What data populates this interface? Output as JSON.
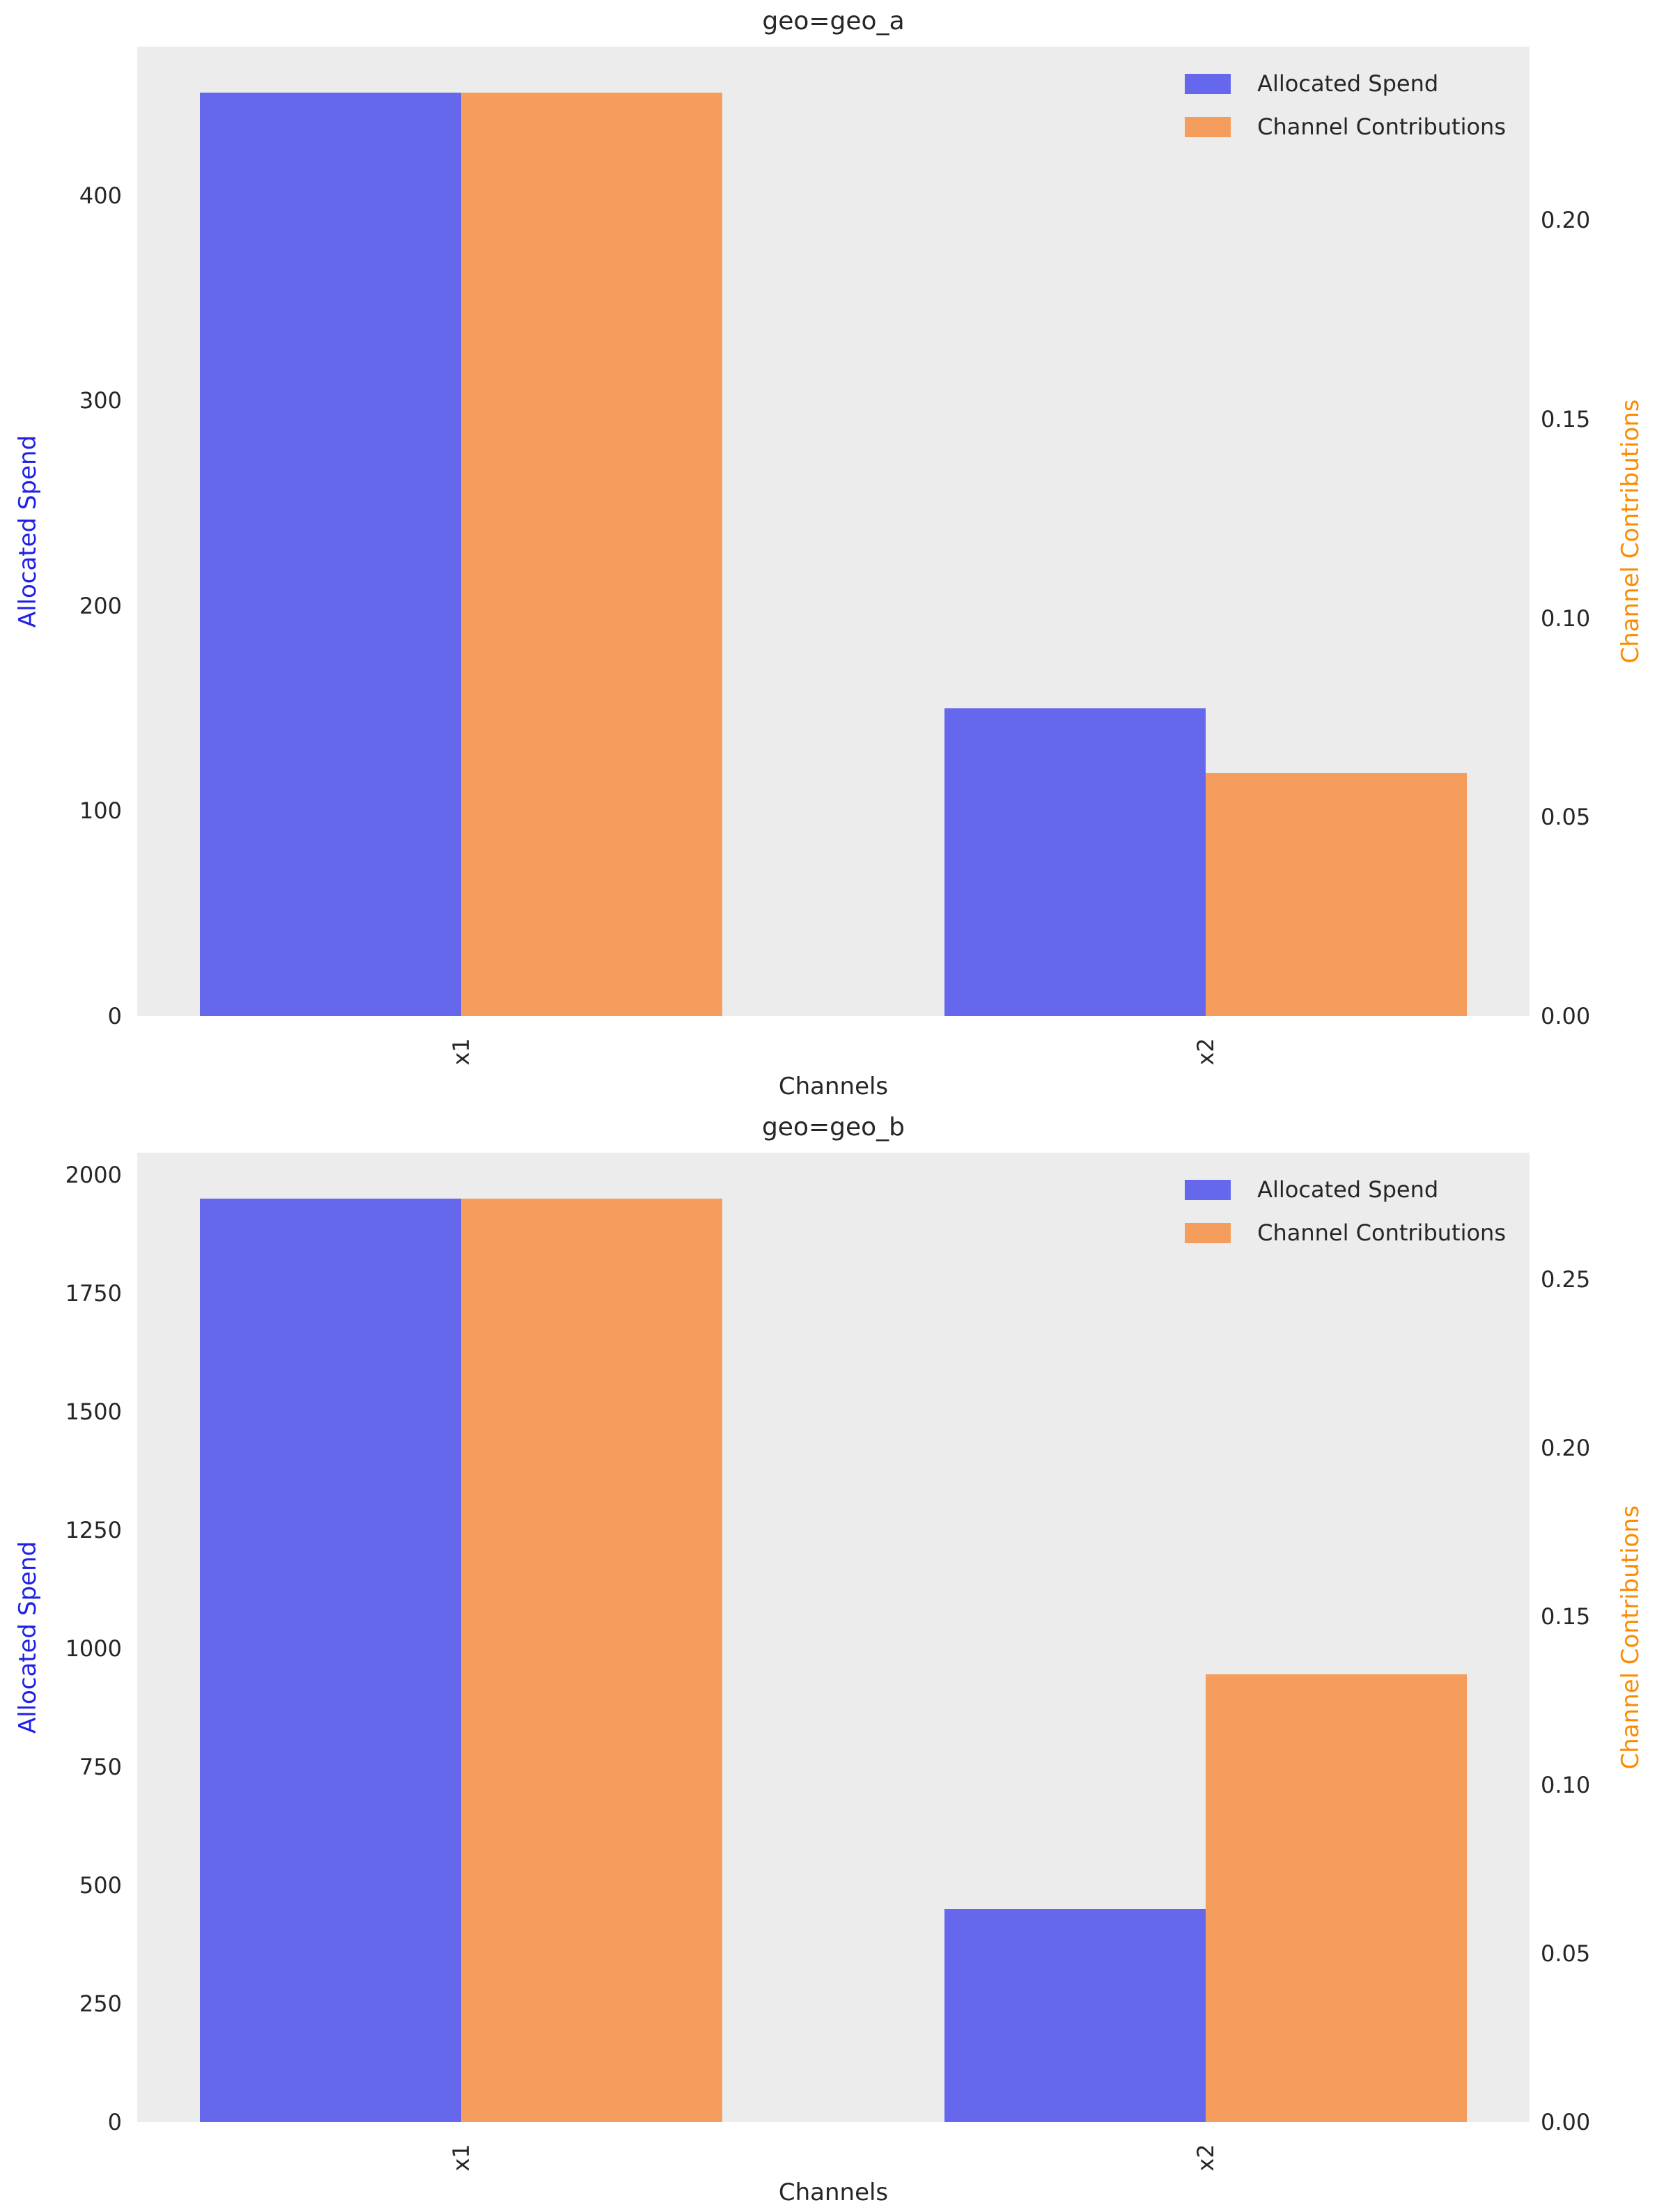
{
  "figure": {
    "background": "#FFFFFF",
    "plot_background": "#ECECEC"
  },
  "chart_data": [
    {
      "type": "bar",
      "title": "geo=geo_a",
      "xlabel": "Channels",
      "categories": [
        "x1",
        "x2"
      ],
      "grid": false,
      "legend_position": "upper right",
      "legend": [
        "Allocated Spend",
        "Channel Contributions"
      ],
      "series": [
        {
          "name": "Allocated Spend",
          "axis": "left",
          "color": "#6568EC",
          "values": [
            450,
            150
          ]
        },
        {
          "name": "Channel Contributions",
          "axis": "right",
          "color": "#F49D5C",
          "values": [
            0.232,
            0.061
          ]
        }
      ],
      "left_axis": {
        "label": "Allocated Spend",
        "color": "#1F1FE8",
        "tick_labels": [
          "0",
          "100",
          "200",
          "300",
          "400"
        ],
        "tick_values": [
          0,
          100,
          200,
          300,
          400
        ],
        "min": 0,
        "max": 472.5
      },
      "right_axis": {
        "label": "Channel Contributions",
        "color": "#FB8C00",
        "tick_labels": [
          "0.00",
          "0.05",
          "0.10",
          "0.15",
          "0.20"
        ],
        "tick_values": [
          0,
          0.05,
          0.1,
          0.15,
          0.2
        ],
        "min": 0,
        "max": 0.2436
      }
    },
    {
      "type": "bar",
      "title": "geo=geo_b",
      "xlabel": "Channels",
      "categories": [
        "x1",
        "x2"
      ],
      "grid": false,
      "legend_position": "upper right",
      "legend": [
        "Allocated Spend",
        "Channel Contributions"
      ],
      "series": [
        {
          "name": "Allocated Spend",
          "axis": "left",
          "color": "#6568EC",
          "values": [
            1950,
            450
          ]
        },
        {
          "name": "Channel Contributions",
          "axis": "right",
          "color": "#F49D5C",
          "values": [
            0.274,
            0.133
          ]
        }
      ],
      "left_axis": {
        "label": "Allocated Spend",
        "color": "#1F1FE8",
        "tick_labels": [
          "0",
          "250",
          "500",
          "750",
          "1000",
          "1250",
          "1500",
          "1750",
          "2000"
        ],
        "tick_values": [
          0,
          250,
          500,
          750,
          1000,
          1250,
          1500,
          1750,
          2000
        ],
        "min": 0,
        "max": 2047.5
      },
      "right_axis": {
        "label": "Channel Contributions",
        "color": "#FB8C00",
        "tick_labels": [
          "0.00",
          "0.05",
          "0.10",
          "0.15",
          "0.20",
          "0.25"
        ],
        "tick_values": [
          0,
          0.05,
          0.1,
          0.15,
          0.2,
          0.25
        ],
        "min": 0,
        "max": 0.2877
      }
    }
  ]
}
